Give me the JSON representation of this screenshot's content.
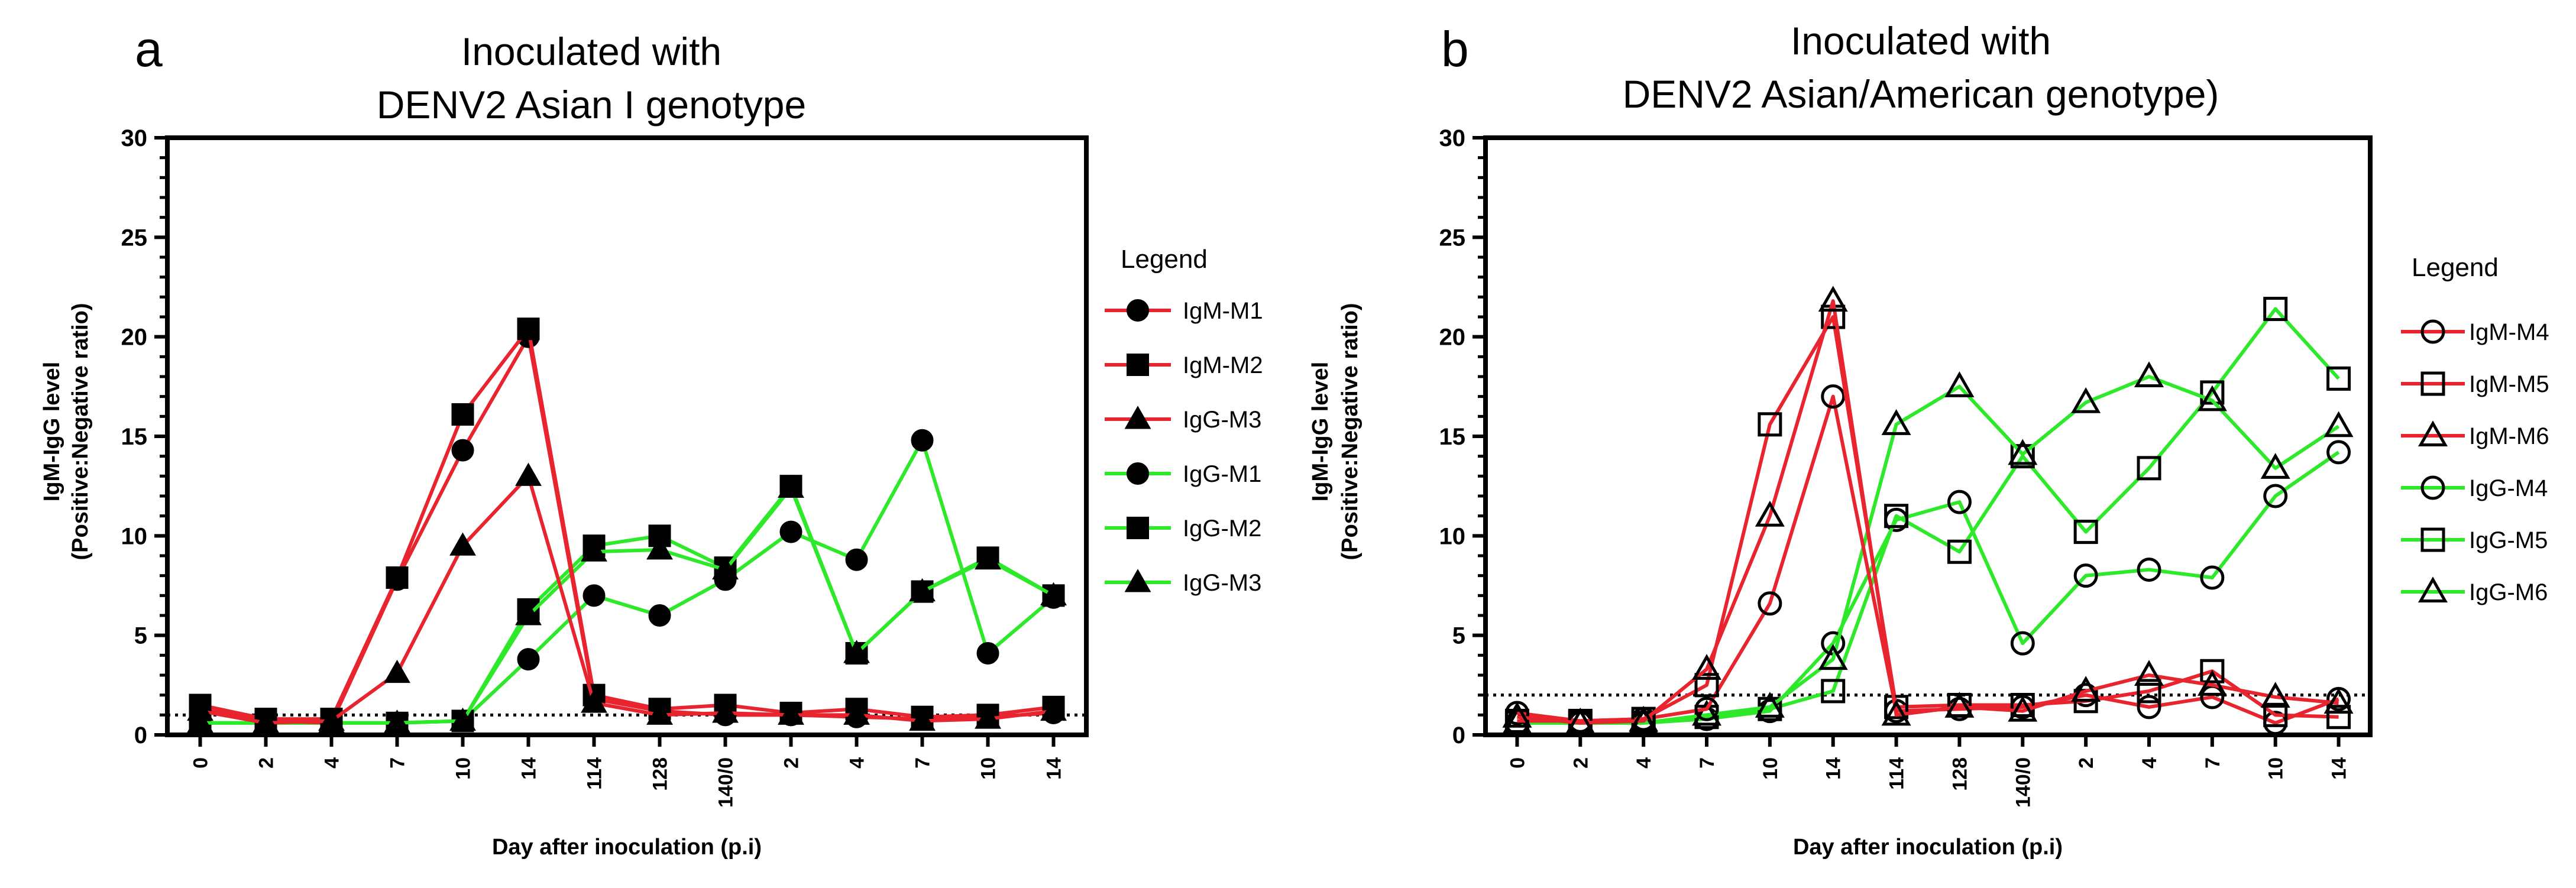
{
  "chart_data": [
    {
      "type": "line",
      "panel_label": "a",
      "title_lines": [
        "Inoculated with",
        "DENV2 Asian I genotype"
      ],
      "xlabel": "Day after inoculation (p.i)",
      "ylabel_lines": [
        "IgM-IgG level",
        "(Positive:Negative ratio)"
      ],
      "ylim": [
        0,
        30
      ],
      "yticks": [
        0,
        5,
        10,
        15,
        20,
        25,
        30
      ],
      "categories": [
        "0",
        "2",
        "4",
        "7",
        "10",
        "14",
        "114",
        "128",
        "140/0",
        "2",
        "4",
        "7",
        "10",
        "14"
      ],
      "threshold": 1,
      "legend_title": "Legend",
      "series": [
        {
          "name": "IgM-M1",
          "color": "#e8242f",
          "marker": "circle",
          "filled": true,
          "values": [
            1.3,
            0.7,
            0.6,
            7.8,
            14.3,
            20.0,
            1.8,
            1.2,
            1.0,
            1.0,
            0.9,
            0.8,
            0.9,
            1.1
          ]
        },
        {
          "name": "IgM-M2",
          "color": "#e8242f",
          "marker": "square",
          "filled": true,
          "values": [
            1.5,
            0.8,
            0.8,
            7.9,
            16.1,
            20.4,
            2.0,
            1.3,
            1.5,
            1.1,
            1.3,
            0.9,
            1.0,
            1.4
          ]
        },
        {
          "name": "IgG-M3",
          "color": "#e8242f",
          "marker": "triangle",
          "filled": true,
          "values": [
            1.2,
            0.6,
            0.7,
            3.1,
            9.5,
            13.0,
            1.6,
            1.0,
            1.1,
            1.0,
            1.0,
            0.7,
            0.8,
            1.2
          ]
        },
        {
          "name": "IgG-M1",
          "color": "#2ee82a",
          "marker": "circle",
          "filled": true,
          "values": [
            0.6,
            0.6,
            0.6,
            0.6,
            0.7,
            3.8,
            7.0,
            6.0,
            7.8,
            10.2,
            8.8,
            14.8,
            4.1,
            6.9
          ]
        },
        {
          "name": "IgG-M2",
          "color": "#2ee82a",
          "marker": "square",
          "filled": true,
          "values": [
            0.6,
            0.6,
            0.6,
            0.6,
            0.7,
            6.3,
            9.5,
            10.0,
            8.4,
            12.5,
            4.1,
            7.2,
            8.9,
            7.0
          ]
        },
        {
          "name": "IgG-M3",
          "color": "#2ee82a",
          "marker": "triangle",
          "filled": true,
          "values": [
            0.6,
            0.6,
            0.6,
            0.6,
            0.7,
            6.0,
            9.2,
            9.3,
            8.3,
            12.4,
            4.1,
            7.2,
            8.8,
            7.0
          ]
        }
      ]
    },
    {
      "type": "line",
      "panel_label": "b",
      "title_lines": [
        "Inoculated with",
        "DENV2 Asian/American genotype)"
      ],
      "xlabel": "Day after inoculation (p.i)",
      "ylabel_lines": [
        "IgM-IgG level",
        "(Positive:Negative ratio)"
      ],
      "ylim": [
        0,
        30
      ],
      "yticks": [
        0,
        5,
        10,
        15,
        20,
        25,
        30
      ],
      "categories": [
        "0",
        "2",
        "4",
        "7",
        "10",
        "14",
        "114",
        "128",
        "140/0",
        "2",
        "4",
        "7",
        "10",
        "14"
      ],
      "threshold": 2,
      "legend_title": "Legend",
      "series": [
        {
          "name": "IgM-M4",
          "color": "#e8242f",
          "marker": "circle",
          "filled": false,
          "values": [
            1.1,
            0.7,
            0.8,
            1.3,
            6.6,
            17.0,
            1.2,
            1.3,
            1.4,
            2.0,
            1.4,
            1.9,
            0.6,
            1.8
          ]
        },
        {
          "name": "IgM-M5",
          "color": "#e8242f",
          "marker": "square",
          "filled": false,
          "values": [
            0.7,
            0.7,
            0.8,
            2.5,
            15.6,
            21.0,
            1.4,
            1.5,
            1.5,
            1.7,
            2.2,
            3.2,
            1.0,
            0.9
          ]
        },
        {
          "name": "IgM-M6",
          "color": "#e8242f",
          "marker": "triangle",
          "filled": false,
          "values": [
            0.9,
            0.6,
            0.7,
            3.3,
            11.0,
            21.8,
            1.0,
            1.4,
            1.2,
            2.2,
            3.0,
            2.5,
            1.9,
            1.6
          ]
        },
        {
          "name": "IgG-M4",
          "color": "#2ee82a",
          "marker": "circle",
          "filled": false,
          "values": [
            0.6,
            0.6,
            0.6,
            0.8,
            1.2,
            4.6,
            10.8,
            11.7,
            4.6,
            8.0,
            8.3,
            7.9,
            12.0,
            14.2
          ]
        },
        {
          "name": "IgG-M5",
          "color": "#2ee82a",
          "marker": "square",
          "filled": false,
          "values": [
            0.6,
            0.6,
            0.6,
            0.9,
            1.3,
            2.2,
            11.0,
            9.2,
            14.0,
            10.2,
            13.4,
            17.2,
            21.4,
            17.9
          ]
        },
        {
          "name": "IgG-M6",
          "color": "#2ee82a",
          "marker": "triangle",
          "filled": false,
          "values": [
            0.6,
            0.6,
            0.6,
            1.0,
            1.4,
            3.8,
            15.6,
            17.5,
            14.1,
            16.7,
            18.0,
            16.8,
            13.4,
            15.5
          ]
        }
      ]
    }
  ]
}
